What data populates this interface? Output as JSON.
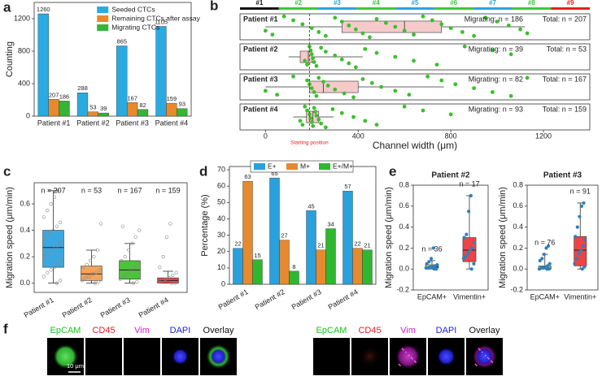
{
  "chart_data": [
    {
      "label": "a",
      "type": "bar",
      "ylabel": "Counting",
      "categories": [
        "Patient #1",
        "Patient #2",
        "Patient #3",
        "Patient #4"
      ],
      "series": [
        {
          "name": "Seeded CTCs",
          "color": "#29abe2",
          "values": [
            1260,
            288,
            865,
            1105
          ]
        },
        {
          "name": "Remaining CTCs after assay",
          "color": "#e8892b",
          "values": [
            207,
            53,
            167,
            159
          ]
        },
        {
          "name": "Migrating CTCs",
          "color": "#35b535",
          "values": [
            186,
            39,
            82,
            93
          ]
        }
      ],
      "ylim": [
        0,
        1400
      ],
      "yticks": [
        0,
        400,
        800,
        1200
      ],
      "legend": "upper right"
    },
    {
      "label": "b",
      "type": "hbox",
      "xlabel": "Channel width (μm)",
      "xlim": [
        -110,
        1400
      ],
      "xticks": [
        0,
        400,
        800,
        1200
      ],
      "channels": [
        {
          "name": "#1",
          "color": "#111111"
        },
        {
          "name": "#2",
          "color": "#3cc83c"
        },
        {
          "name": "#3",
          "color": "#2aa4e0"
        },
        {
          "name": "#4",
          "color": "#3cc83c"
        },
        {
          "name": "#5",
          "color": "#2aa4e0"
        },
        {
          "name": "#6",
          "color": "#3cc83c"
        },
        {
          "name": "#7",
          "color": "#2aa4e0"
        },
        {
          "name": "#8",
          "color": "#3cc83c"
        },
        {
          "name": "#9",
          "color": "#e02020"
        }
      ],
      "start_position": 190,
      "annotation": "Starting position",
      "box_color": "#f6caca",
      "point_color": "#3cbf2e",
      "groups": [
        {
          "name": "Patient #1",
          "migrating": "Migrating: n = 186",
          "total": "Total: n = 207",
          "whisker_low": 0,
          "q1": 330,
          "median": 600,
          "q3": 760,
          "whisker_high": 1120,
          "points": [
            0,
            30,
            80,
            120,
            160,
            200,
            230,
            260,
            300,
            330,
            360,
            390,
            420,
            450,
            480,
            520,
            560,
            600,
            640,
            680,
            720,
            760,
            800,
            850,
            900,
            950,
            1000,
            1050,
            1100,
            1130
          ]
        },
        {
          "name": "Patient #2",
          "migrating": "Migrating: n = 39",
          "total": "Total: n = 53",
          "whisker_low": 100,
          "q1": 150,
          "median": 185,
          "q3": 200,
          "whisker_high": 420,
          "points": [
            170,
            180,
            190,
            195,
            200,
            205,
            210,
            220,
            240,
            260,
            300,
            330,
            360,
            390,
            430,
            480,
            560,
            640,
            740,
            860,
            980,
            1060
          ]
        },
        {
          "name": "Patient #3",
          "migrating": "Migrating: n = 82",
          "total": "Total: n = 167",
          "whisker_low": 0,
          "q1": 190,
          "median": 250,
          "q3": 400,
          "whisker_high": 770,
          "points": [
            0,
            50,
            120,
            180,
            190,
            200,
            210,
            220,
            230,
            250,
            270,
            300,
            340,
            380,
            420,
            460,
            500,
            560,
            620,
            700,
            760,
            820,
            900,
            980,
            1060,
            1130
          ]
        },
        {
          "name": "Patient #4",
          "migrating": "Migrating: n = 93",
          "total": "Total: n = 159",
          "whisker_low": 120,
          "q1": 177,
          "median": 205,
          "q3": 230,
          "whisker_high": 294,
          "points": [
            150,
            160,
            170,
            180,
            190,
            195,
            200,
            205,
            210,
            215,
            220,
            230,
            240,
            260,
            290,
            330,
            380,
            430,
            480,
            600,
            680,
            800
          ]
        }
      ]
    },
    {
      "label": "c",
      "type": "box",
      "ylabel": "Migration speed (μm/min)",
      "categories": [
        "Patient #1",
        "Patient #2",
        "Patient #3",
        "Patient #4"
      ],
      "colors": [
        "#3aa8e0",
        "#f5a55a",
        "#4cc43a",
        "#ee4444"
      ],
      "n_labels": [
        "n = 207",
        "n = 53",
        "n = 167",
        "n = 159"
      ],
      "ylim": [
        -0.07,
        0.76
      ],
      "yticks": [
        {
          "value": 0,
          "label": "0.0"
        },
        0.2,
        0.4,
        0.6
      ],
      "point_color": "#888888",
      "boxes": [
        {
          "whisker_low": 0,
          "q1": 0.12,
          "median": 0.27,
          "q3": 0.4,
          "whisker_high": 0.7,
          "points": [
            0.0,
            0.02,
            0.05,
            0.08,
            0.1,
            0.12,
            0.15,
            0.18,
            0.2,
            0.22,
            0.25,
            0.27,
            0.3,
            0.32,
            0.35,
            0.38,
            0.4,
            0.43,
            0.46,
            0.5,
            0.55,
            0.6,
            0.65,
            0.7
          ]
        },
        {
          "whisker_low": 0,
          "q1": 0.02,
          "median": 0.07,
          "q3": 0.13,
          "whisker_high": 0.25,
          "points": [
            0.0,
            0.01,
            0.02,
            0.04,
            0.05,
            0.07,
            0.08,
            0.1,
            0.12,
            0.14,
            0.17,
            0.2,
            0.25,
            0.45
          ]
        },
        {
          "whisker_low": 0,
          "q1": 0.03,
          "median": 0.1,
          "q3": 0.17,
          "whisker_high": 0.3,
          "points": [
            0.0,
            0.01,
            0.03,
            0.05,
            0.07,
            0.1,
            0.12,
            0.15,
            0.17,
            0.2,
            0.25,
            0.3,
            0.35,
            0.4,
            0.43
          ]
        },
        {
          "whisker_low": 0,
          "q1": 0,
          "median": 0.02,
          "q3": 0.04,
          "whisker_high": 0.09,
          "points": [
            0.0,
            0.0,
            0.01,
            0.02,
            0.03,
            0.04,
            0.06,
            0.08,
            0.12,
            0.2,
            0.35,
            0.45
          ]
        }
      ]
    },
    {
      "label": "d",
      "type": "bar",
      "ylabel": "Percentage (%)",
      "categories": [
        "Patient #1",
        "Patient #2",
        "Patient #3",
        "Patient #4"
      ],
      "series": [
        {
          "name": "E+",
          "color": "#2aa0dc",
          "values": [
            22,
            65,
            45,
            57
          ]
        },
        {
          "name": "M+",
          "color": "#e58a2e",
          "values": [
            63,
            27,
            21,
            22
          ]
        },
        {
          "name": "E+/M+",
          "color": "#2fb82f",
          "values": [
            15,
            8,
            34,
            21
          ]
        }
      ],
      "ylim": [
        0,
        72
      ],
      "yticks": [
        0,
        10,
        20,
        30,
        40,
        50,
        60,
        70
      ],
      "legend": "upper center"
    },
    {
      "label": "e",
      "type": "box",
      "title": "Patient #2",
      "ylabel": "Migration speed (μm/min)",
      "categories": [
        "EpCAM+",
        "Vimentin+"
      ],
      "colors": [
        "#b5dc5a",
        "#ee4444"
      ],
      "n_labels": [
        "n = 36",
        "n = 17"
      ],
      "ylim": [
        -0.2,
        0.8
      ],
      "yticks": [
        -0.2,
        {
          "value": 0,
          "label": "0.0"
        },
        0.2,
        0.4,
        0.6,
        0.8
      ],
      "point_color": "#2f7fbf",
      "boxes": [
        {
          "whisker_low": 0,
          "q1": 0.01,
          "median": 0.02,
          "q3": 0.04,
          "whisker_high": 0.08,
          "points": [
            0.0,
            0.0,
            0.01,
            0.01,
            0.02,
            0.02,
            0.03,
            0.04,
            0.05,
            0.07,
            0.1,
            0.2
          ]
        },
        {
          "whisker_low": 0,
          "q1": 0.07,
          "median": 0.18,
          "q3": 0.3,
          "whisker_high": 0.7,
          "points": [
            0.0,
            0.05,
            0.1,
            0.12,
            0.15,
            0.18,
            0.2,
            0.25,
            0.3,
            0.33,
            0.55,
            0.7
          ]
        }
      ]
    },
    {
      "type": "box",
      "title": "Patient #3",
      "ylabel": "Migration speed (μm/min)",
      "categories": [
        "EpCAM+",
        "Vimentin+"
      ],
      "colors": [
        "#b5dc5a",
        "#ee4444"
      ],
      "n_labels": [
        "n = 76",
        "n = 91"
      ],
      "ylim": [
        -0.2,
        0.8
      ],
      "yticks": [
        -0.2,
        {
          "value": 0,
          "label": "0.0"
        },
        0.2,
        0.4,
        0.6,
        0.8
      ],
      "point_color": "#2f7fbf",
      "boxes": [
        {
          "whisker_low": 0,
          "q1": 0,
          "median": 0.01,
          "q3": 0.03,
          "whisker_high": 0.14,
          "points": [
            0,
            0,
            0,
            0.01,
            0.01,
            0.02,
            0.03,
            0.05,
            0.08,
            0.1,
            0.14,
            0.2,
            0.22
          ]
        },
        {
          "whisker_low": 0,
          "q1": 0.03,
          "median": 0.18,
          "q3": 0.31,
          "whisker_high": 0.63,
          "points": [
            0,
            0.02,
            0.05,
            0.1,
            0.15,
            0.18,
            0.22,
            0.28,
            0.31,
            0.4,
            0.5,
            0.6,
            0.63
          ]
        }
      ]
    }
  ],
  "image_panel": {
    "label": "f",
    "groups": [
      [
        "EpCAM",
        "CD45",
        "Vim",
        "DAPI",
        "Overlay"
      ],
      [
        "EpCAM",
        "CD45",
        "Vim",
        "DAPI",
        "Overlay"
      ]
    ],
    "scale_bar": "10 μm"
  }
}
